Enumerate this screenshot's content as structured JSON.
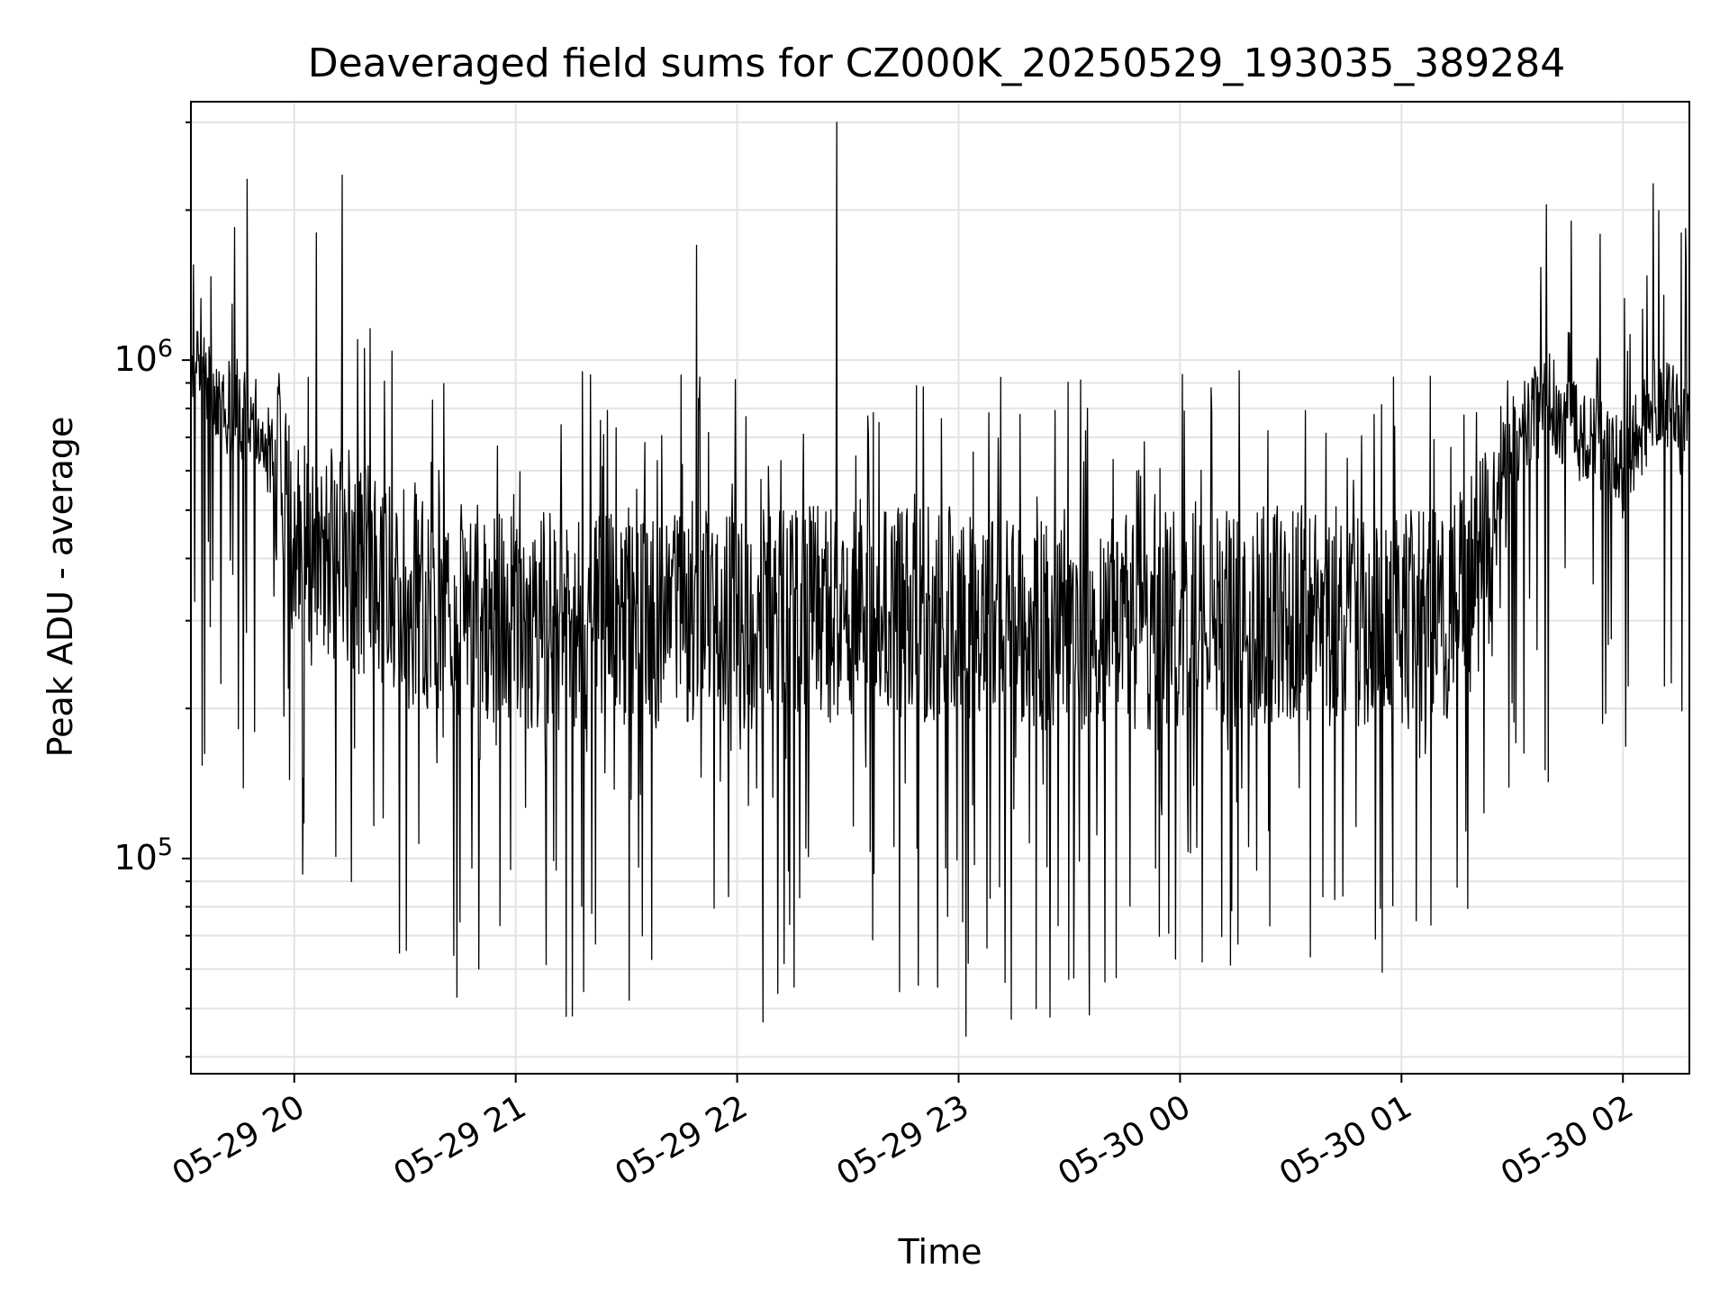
{
  "chart_data": {
    "type": "line",
    "title": "Deaveraged field sums for CZ000K_20250529_193035_389284",
    "xlabel": "Time",
    "ylabel": "Peak ADU - average",
    "yscale": "log",
    "xlim": [
      "2025-05-29 19:32",
      "2025-05-30 02:18"
    ],
    "ylim": [
      37000,
      3300000
    ],
    "x_tick_labels": [
      "05-29 20",
      "05-29 21",
      "05-29 22",
      "05-29 23",
      "05-30 00",
      "05-30 01",
      "05-30 02"
    ],
    "x_ticks": [
      "2025-05-29 20:00",
      "2025-05-29 21:00",
      "2025-05-29 22:00",
      "2025-05-29 23:00",
      "2025-05-30 00:00",
      "2025-05-30 01:00",
      "2025-05-30 02:00"
    ],
    "y_tick_labels": [
      {
        "base": "10",
        "exp": "5",
        "value": 100000
      },
      {
        "base": "10",
        "exp": "6",
        "value": 1000000
      }
    ],
    "grid": true,
    "line_color": "#000000",
    "series": [
      {
        "note_x": "estimated envelope samples (time, approximate typical level); fine-grained noise is rendered procedurally",
        "x": [
          "2025-05-29 19:32",
          "2025-05-29 19:40",
          "2025-05-29 19:50",
          "2025-05-29 19:55",
          "2025-05-29 20:00",
          "2025-05-29 20:10",
          "2025-05-29 20:20",
          "2025-05-29 20:30",
          "2025-05-29 20:45",
          "2025-05-29 21:00",
          "2025-05-29 21:30",
          "2025-05-29 22:00",
          "2025-05-29 22:30",
          "2025-05-29 23:00",
          "2025-05-29 23:30",
          "2025-05-30 00:00",
          "2025-05-30 00:30",
          "2025-05-30 01:00",
          "2025-05-30 01:15",
          "2025-05-30 01:25",
          "2025-05-30 01:30",
          "2025-05-30 01:40",
          "2025-05-30 01:50",
          "2025-05-30 02:00",
          "2025-05-30 02:10",
          "2025-05-30 02:18"
        ],
        "y": [
          950000,
          820000,
          780000,
          600000,
          450000,
          420000,
          380000,
          330000,
          310000,
          300000,
          300000,
          300000,
          310000,
          300000,
          300000,
          300000,
          310000,
          300000,
          320000,
          420000,
          700000,
          820000,
          700000,
          600000,
          850000,
          700000
        ]
      }
    ],
    "spikes_high": [
      {
        "x": "2025-05-29 20:13",
        "y": 2350000
      },
      {
        "x": "2025-05-29 20:06",
        "y": 1800000
      },
      {
        "x": "2025-05-29 21:49",
        "y": 1700000
      },
      {
        "x": "2025-05-29 22:27",
        "y": 3000000
      },
      {
        "x": "2025-05-30 01:46",
        "y": 1900000
      }
    ],
    "spikes_low": [
      {
        "x": "2025-05-29 20:50",
        "y": 60000
      },
      {
        "x": "2025-05-29 22:07",
        "y": 47000
      },
      {
        "x": "2025-05-29 23:02",
        "y": 44000
      },
      {
        "x": "2025-05-29 23:21",
        "y": 50000
      },
      {
        "x": "2025-05-30 00:06",
        "y": 62000
      },
      {
        "x": "2025-05-30 01:04",
        "y": 75000
      }
    ]
  }
}
